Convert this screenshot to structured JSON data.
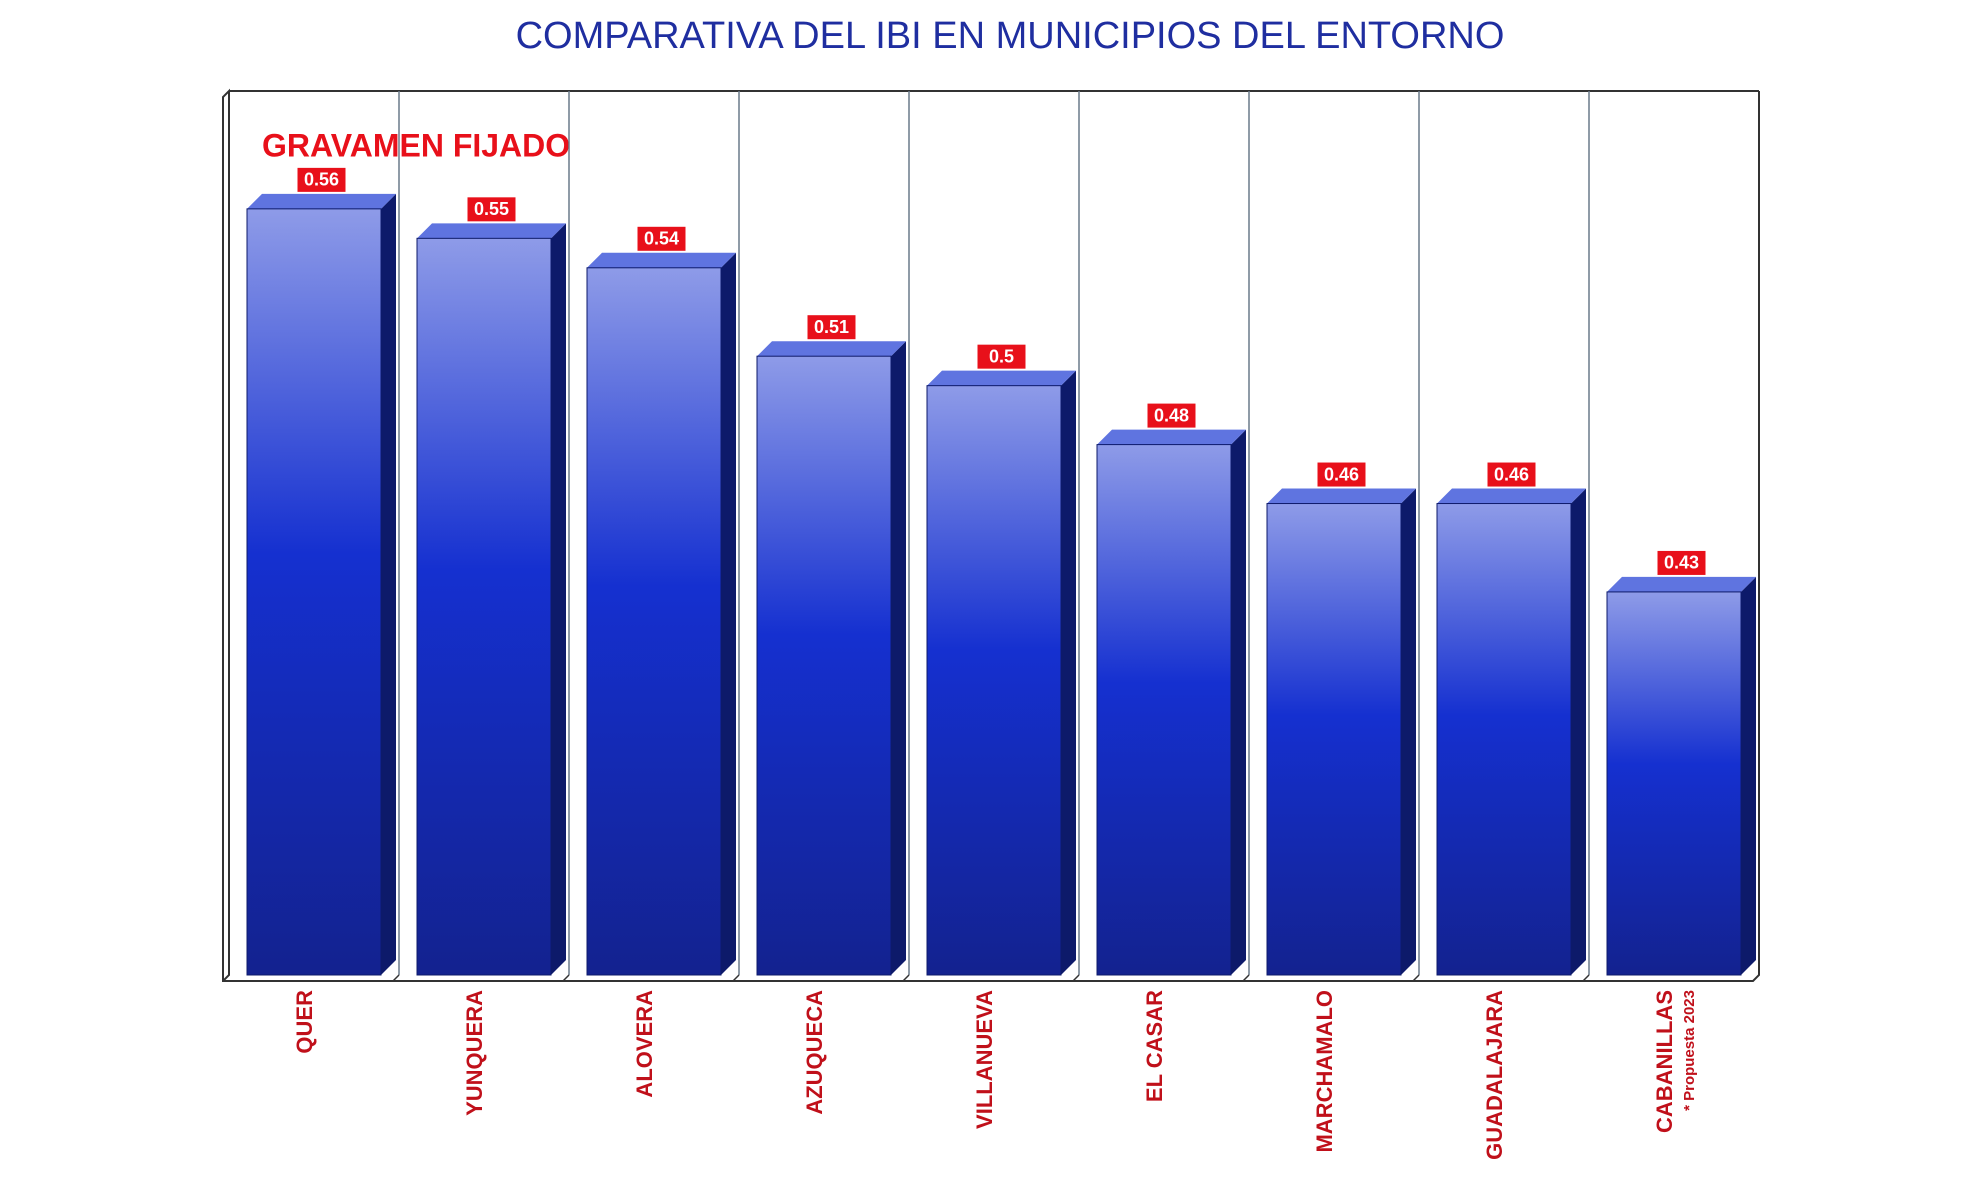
{
  "chart_data": {
    "type": "bar3d",
    "title": "COMPARATIVA DEL IBI EN MUNICIPIOS DEL ENTORNO",
    "subtitle": "GRAVAMEN FIJADO",
    "annotation": "* Propuesta 2023",
    "categories": [
      "QUER",
      "YUNQUERA",
      "ALOVERA",
      "AZUQUECA",
      "VILLANUEVA",
      "EL CASAR",
      "MARCHAMALO",
      "GUADALAJARA",
      "CABANILLAS"
    ],
    "values": [
      0.56,
      0.55,
      0.54,
      0.51,
      0.5,
      0.48,
      0.46,
      0.46,
      0.43
    ],
    "color": "#1530d0",
    "ylim": [
      0.3,
      0.6
    ],
    "grid": true
  }
}
